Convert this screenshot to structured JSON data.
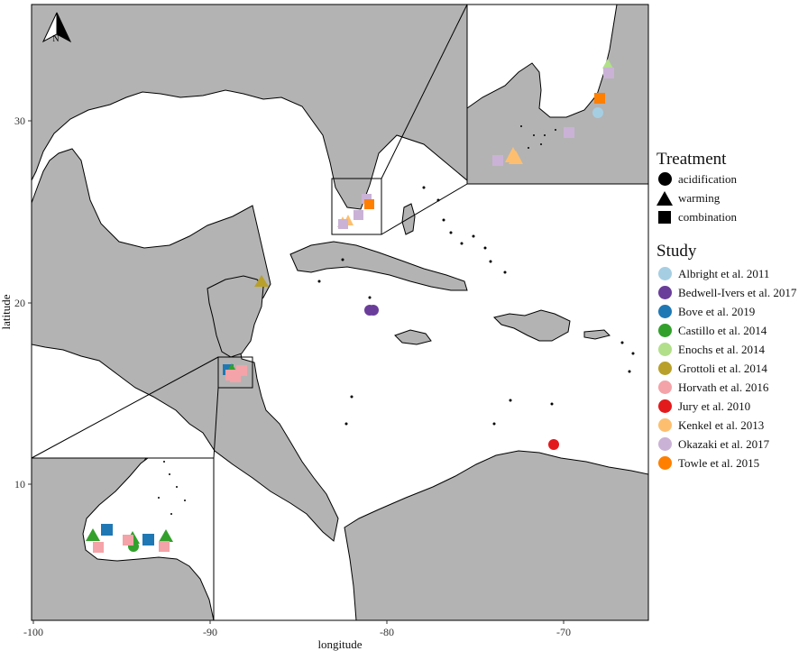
{
  "axes": {
    "x_label": "longitude",
    "y_label": "latitude",
    "x_ticks": [
      "-100",
      "-90",
      "-80",
      "-70"
    ],
    "y_ticks": [
      "10",
      "20",
      "30"
    ]
  },
  "north_arrow": {
    "label": "N"
  },
  "legend_treatment": {
    "title": "Treatment",
    "items": [
      {
        "label": "acidification",
        "shape": "circle"
      },
      {
        "label": "warming",
        "shape": "triangle"
      },
      {
        "label": "combination",
        "shape": "square"
      }
    ]
  },
  "legend_study": {
    "title": "Study",
    "items": [
      {
        "label": "Albright et al. 2011",
        "color": "#a6cee3"
      },
      {
        "label": "Bedwell-Ivers et al. 2017",
        "color": "#6a3d9a"
      },
      {
        "label": "Bove et al. 2019",
        "color": "#1f78b4"
      },
      {
        "label": "Castillo et al. 2014",
        "color": "#33a02c"
      },
      {
        "label": "Enochs et al. 2014",
        "color": "#b2df8a"
      },
      {
        "label": "Grottoli et al. 2014",
        "color": "#b8a02b"
      },
      {
        "label": "Horvath et al. 2016",
        "color": "#f4a3a8"
      },
      {
        "label": "Jury et al. 2010",
        "color": "#e31a1c"
      },
      {
        "label": "Kenkel et al. 2013",
        "color": "#fdbf6f"
      },
      {
        "label": "Okazaki et al. 2017",
        "color": "#cab2d6"
      },
      {
        "label": "Towle et al. 2015",
        "color": "#ff7f00"
      }
    ]
  },
  "colors": {
    "land": "#b3b3b3",
    "sea": "#ffffff",
    "border": "#000000"
  }
}
